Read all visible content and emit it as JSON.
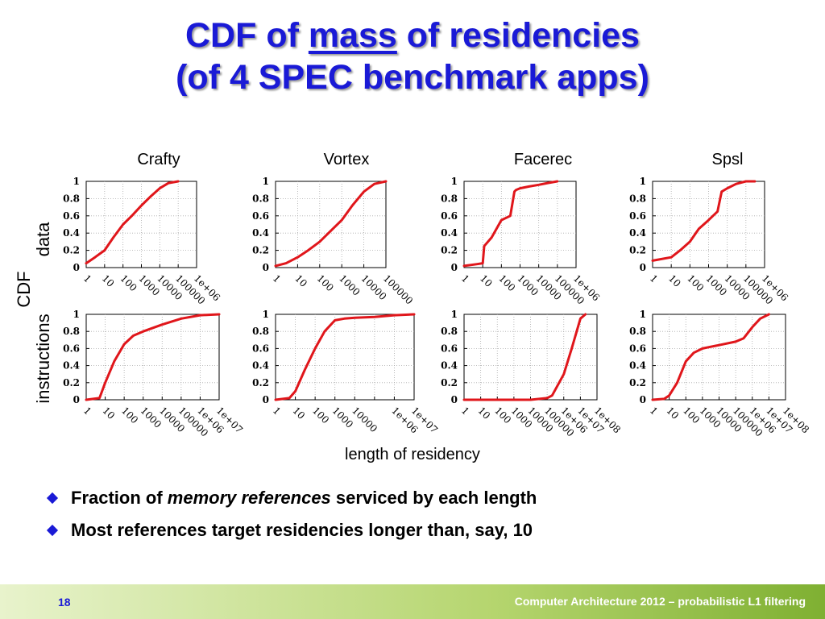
{
  "slide": {
    "title_line1_pre": "CDF of ",
    "title_line1_emph": "mass",
    "title_line1_post": " of residencies",
    "title_line2": "(of 4 SPEC benchmark apps)",
    "ylabel_outer": "CDF",
    "ylabel_top": "data",
    "ylabel_bottom": "instructions",
    "xlabel": "length of residency",
    "bullets": [
      {
        "pre": "Fraction of ",
        "emph": "memory references",
        "post": " serviced by each length"
      },
      {
        "pre": "Most references target residencies longer than, say, 10",
        "emph": "",
        "post": ""
      }
    ],
    "page_number": "18",
    "footer": "Computer Architecture 2012 – probabilistic L1 filtering"
  },
  "colors": {
    "title": "#1a1ad6",
    "series": "#e0161b",
    "bullet": "#1a1ad6",
    "footer_text": "#ffffff"
  },
  "chart_data": [
    {
      "type": "line",
      "title": "Crafty",
      "row": "data",
      "xscale": "log",
      "ylim": [
        0,
        1
      ],
      "xlim": [
        1,
        1000000
      ],
      "yticks": [
        "0",
        "0.2",
        "0.4",
        "0.6",
        "0.8",
        "1"
      ],
      "xticks": [
        "1",
        "10",
        "100",
        "1000",
        "10000",
        "100000",
        "1e+06"
      ],
      "grid": true,
      "x": [
        1,
        3,
        10,
        30,
        100,
        300,
        1000,
        3000,
        10000,
        30000,
        100000
      ],
      "y": [
        0.05,
        0.12,
        0.2,
        0.35,
        0.5,
        0.6,
        0.72,
        0.82,
        0.92,
        0.98,
        1.0
      ]
    },
    {
      "type": "line",
      "title": "Vortex",
      "row": "data",
      "xscale": "log",
      "ylim": [
        0,
        1
      ],
      "xlim": [
        1,
        100000
      ],
      "yticks": [
        "0",
        "0.2",
        "0.4",
        "0.6",
        "0.8",
        "1"
      ],
      "xticks": [
        "1",
        "10",
        "100",
        "1000",
        "10000",
        "100000"
      ],
      "grid": true,
      "x": [
        1,
        3,
        10,
        30,
        100,
        300,
        1000,
        3000,
        10000,
        30000,
        100000
      ],
      "y": [
        0.02,
        0.05,
        0.12,
        0.2,
        0.3,
        0.42,
        0.55,
        0.72,
        0.88,
        0.97,
        1.0
      ]
    },
    {
      "type": "line",
      "title": "Facerec",
      "row": "data",
      "xscale": "log",
      "ylim": [
        0,
        1
      ],
      "xlim": [
        1,
        1000000
      ],
      "yticks": [
        "0",
        "0.2",
        "0.4",
        "0.6",
        "0.8",
        "1"
      ],
      "xticks": [
        "1",
        "10",
        "100",
        "1000",
        "10000",
        "100000",
        "1e+06"
      ],
      "grid": true,
      "x": [
        1,
        5,
        10,
        12,
        30,
        100,
        300,
        500,
        600,
        1000,
        3000,
        10000,
        30000,
        100000
      ],
      "y": [
        0.02,
        0.04,
        0.05,
        0.25,
        0.35,
        0.55,
        0.6,
        0.88,
        0.9,
        0.92,
        0.94,
        0.96,
        0.98,
        1.0
      ]
    },
    {
      "type": "line",
      "title": "Spsl",
      "row": "data",
      "xscale": "log",
      "ylim": [
        0,
        1
      ],
      "xlim": [
        1,
        1000000
      ],
      "yticks": [
        "0",
        "0.2",
        "0.4",
        "0.6",
        "0.8",
        "1"
      ],
      "xticks": [
        "1",
        "10",
        "100",
        "1000",
        "10000",
        "100000",
        "1e+06"
      ],
      "grid": true,
      "x": [
        1,
        10,
        30,
        100,
        300,
        1000,
        3000,
        5000,
        10000,
        30000,
        100000,
        300000
      ],
      "y": [
        0.08,
        0.12,
        0.2,
        0.3,
        0.45,
        0.55,
        0.65,
        0.88,
        0.92,
        0.97,
        1.0,
        1.0
      ]
    },
    {
      "type": "line",
      "title": "",
      "row": "instructions",
      "xscale": "log",
      "ylim": [
        0,
        1
      ],
      "xlim": [
        1,
        10000000
      ],
      "yticks": [
        "0",
        "0.2",
        "0.4",
        "0.6",
        "0.8",
        "1"
      ],
      "xticks": [
        "1",
        "10",
        "100",
        "1000",
        "10000",
        "100000",
        "1e+06",
        "1e+07"
      ],
      "grid": true,
      "x": [
        1,
        5,
        10,
        30,
        100,
        300,
        1000,
        10000,
        100000,
        1000000,
        10000000
      ],
      "y": [
        0.0,
        0.02,
        0.2,
        0.45,
        0.65,
        0.75,
        0.8,
        0.88,
        0.95,
        0.99,
        1.0
      ]
    },
    {
      "type": "line",
      "title": "",
      "row": "instructions",
      "xscale": "log",
      "ylim": [
        0,
        1
      ],
      "xlim": [
        1,
        10000000
      ],
      "yticks": [
        "0",
        "0.2",
        "0.4",
        "0.6",
        "0.8",
        "1"
      ],
      "xticks": [
        "1",
        "10",
        "100",
        "1000",
        "10000",
        "1e+06",
        "1e+07"
      ],
      "grid": true,
      "x": [
        1,
        5,
        10,
        30,
        100,
        300,
        1000,
        3000,
        10000,
        100000,
        1000000,
        10000000
      ],
      "y": [
        0.0,
        0.02,
        0.1,
        0.35,
        0.6,
        0.8,
        0.93,
        0.95,
        0.96,
        0.97,
        0.99,
        1.0
      ]
    },
    {
      "type": "line",
      "title": "",
      "row": "instructions",
      "xscale": "log",
      "ylim": [
        0,
        1
      ],
      "xlim": [
        1,
        100000000
      ],
      "yticks": [
        "0",
        "0.2",
        "0.4",
        "0.6",
        "0.8",
        "1"
      ],
      "xticks": [
        "1",
        "10",
        "100",
        "1000",
        "10000",
        "100000",
        "1e+06",
        "1e+07",
        "1e+08"
      ],
      "grid": true,
      "x": [
        1,
        100,
        10000,
        100000,
        200000,
        1000000,
        3000000,
        10000000,
        20000000
      ],
      "y": [
        0.0,
        0.0,
        0.0,
        0.02,
        0.05,
        0.3,
        0.6,
        0.95,
        1.0
      ]
    },
    {
      "type": "line",
      "title": "",
      "row": "instructions",
      "xscale": "log",
      "ylim": [
        0,
        1
      ],
      "xlim": [
        1,
        100000000
      ],
      "yticks": [
        "0",
        "0.2",
        "0.4",
        "0.6",
        "0.8",
        "1"
      ],
      "xticks": [
        "1",
        "10",
        "100",
        "1000",
        "10000",
        "100000",
        "1e+06",
        "1e+07",
        "1e+08"
      ],
      "grid": true,
      "x": [
        1,
        5,
        10,
        30,
        100,
        300,
        1000,
        3000,
        10000,
        100000,
        300000,
        1000000,
        3000000,
        10000000
      ],
      "y": [
        0.0,
        0.01,
        0.05,
        0.2,
        0.45,
        0.55,
        0.6,
        0.62,
        0.64,
        0.68,
        0.72,
        0.85,
        0.95,
        1.0
      ]
    }
  ]
}
